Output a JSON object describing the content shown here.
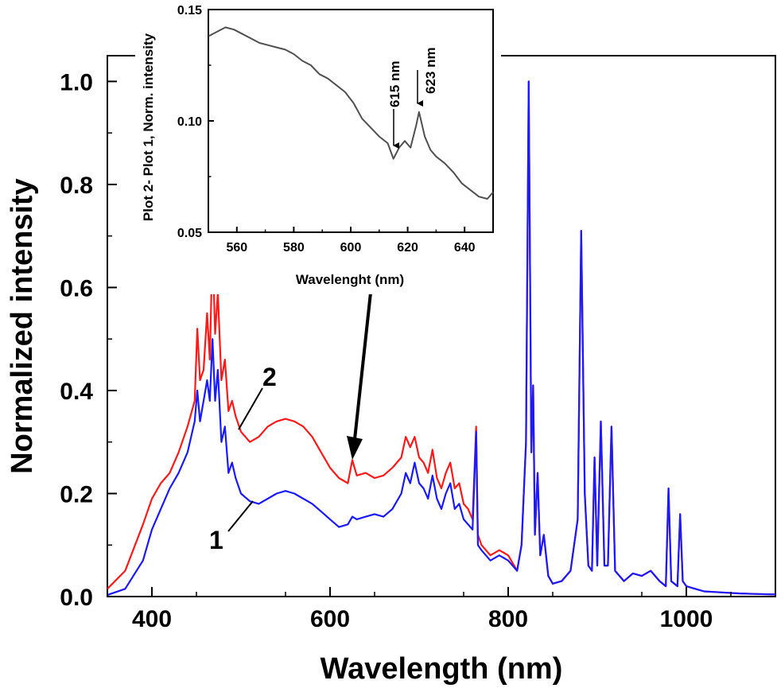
{
  "chart_data": [
    {
      "id": "main",
      "type": "line",
      "xlabel": "Wavelength (nm)",
      "ylabel": "Normalized intensity",
      "xlim": [
        350,
        1100
      ],
      "ylim": [
        0.0,
        1.05
      ],
      "xticks": [
        400,
        600,
        800,
        1000
      ],
      "xtick_labels": [
        "400",
        "600",
        "800",
        "1000"
      ],
      "yticks": [
        0.0,
        0.2,
        0.4,
        0.6,
        0.8,
        1.0
      ],
      "ytick_labels": [
        "0.0",
        "0.2",
        "0.4",
        "0.6",
        "0.8",
        "1.0"
      ],
      "series_labels": [
        "2",
        "1"
      ],
      "series": [
        {
          "name": "2",
          "color": "#ff1a1a",
          "x": [
            350,
            370,
            390,
            400,
            410,
            420,
            430,
            440,
            448,
            451,
            454,
            458,
            462,
            465,
            468,
            471,
            474,
            478,
            482,
            486,
            490,
            494,
            500,
            510,
            520,
            530,
            540,
            550,
            560,
            570,
            580,
            590,
            600,
            610,
            620,
            625,
            630,
            640,
            650,
            660,
            670,
            680,
            685,
            690,
            695,
            700,
            705,
            710,
            715,
            720,
            725,
            730,
            735,
            740,
            745,
            750,
            755,
            760,
            764,
            766,
            770,
            780,
            790,
            800,
            810,
            815,
            820,
            823,
            826,
            828,
            830,
            833,
            836,
            840,
            845,
            850,
            860,
            870,
            878,
            882,
            886,
            890,
            894,
            897,
            900,
            904,
            908,
            912,
            916,
            920,
            930,
            940,
            950,
            960,
            970,
            977,
            980,
            983,
            990,
            993,
            996,
            1000,
            1010,
            1020,
            1040,
            1060,
            1080,
            1100
          ],
          "values": [
            0.015,
            0.05,
            0.14,
            0.19,
            0.22,
            0.24,
            0.28,
            0.33,
            0.38,
            0.52,
            0.42,
            0.44,
            0.55,
            0.46,
            0.68,
            0.51,
            0.59,
            0.42,
            0.46,
            0.36,
            0.38,
            0.35,
            0.32,
            0.3,
            0.31,
            0.33,
            0.34,
            0.345,
            0.34,
            0.33,
            0.31,
            0.28,
            0.25,
            0.23,
            0.22,
            0.265,
            0.235,
            0.24,
            0.23,
            0.235,
            0.25,
            0.27,
            0.31,
            0.29,
            0.31,
            0.27,
            0.26,
            0.24,
            0.285,
            0.23,
            0.21,
            0.24,
            0.26,
            0.21,
            0.22,
            0.18,
            0.17,
            0.15,
            0.33,
            0.12,
            0.1,
            0.08,
            0.09,
            0.08,
            0.05,
            0.1,
            0.3,
            1.0,
            0.28,
            0.41,
            0.12,
            0.24,
            0.08,
            0.12,
            0.04,
            0.025,
            0.03,
            0.05,
            0.15,
            0.71,
            0.2,
            0.06,
            0.05,
            0.27,
            0.06,
            0.34,
            0.06,
            0.06,
            0.33,
            0.05,
            0.03,
            0.045,
            0.04,
            0.05,
            0.03,
            0.02,
            0.21,
            0.03,
            0.02,
            0.16,
            0.03,
            0.02,
            0.015,
            0.01,
            0.008,
            0.006,
            0.005,
            0.004
          ]
        },
        {
          "name": "1",
          "color": "#1a1aff",
          "x": [
            350,
            370,
            390,
            400,
            410,
            420,
            430,
            440,
            448,
            451,
            454,
            458,
            462,
            465,
            468,
            471,
            474,
            478,
            482,
            486,
            490,
            494,
            500,
            510,
            520,
            530,
            540,
            550,
            560,
            570,
            580,
            590,
            600,
            610,
            620,
            625,
            630,
            640,
            650,
            660,
            670,
            680,
            685,
            690,
            695,
            700,
            705,
            710,
            715,
            720,
            725,
            730,
            735,
            740,
            745,
            750,
            755,
            760,
            764,
            766,
            770,
            780,
            790,
            800,
            810,
            815,
            820,
            823,
            826,
            828,
            830,
            833,
            836,
            840,
            845,
            850,
            860,
            870,
            878,
            882,
            886,
            890,
            894,
            897,
            900,
            904,
            908,
            912,
            916,
            920,
            930,
            940,
            950,
            960,
            970,
            977,
            980,
            983,
            990,
            993,
            996,
            1000,
            1010,
            1020,
            1040,
            1060,
            1080,
            1100
          ],
          "values": [
            0.003,
            0.015,
            0.07,
            0.13,
            0.17,
            0.21,
            0.24,
            0.28,
            0.34,
            0.4,
            0.34,
            0.38,
            0.42,
            0.38,
            0.5,
            0.38,
            0.44,
            0.3,
            0.33,
            0.24,
            0.26,
            0.23,
            0.2,
            0.185,
            0.18,
            0.19,
            0.2,
            0.205,
            0.2,
            0.19,
            0.18,
            0.165,
            0.15,
            0.135,
            0.14,
            0.155,
            0.15,
            0.155,
            0.16,
            0.155,
            0.17,
            0.2,
            0.24,
            0.22,
            0.26,
            0.22,
            0.21,
            0.19,
            0.235,
            0.19,
            0.17,
            0.2,
            0.22,
            0.17,
            0.18,
            0.15,
            0.14,
            0.13,
            0.32,
            0.1,
            0.09,
            0.07,
            0.08,
            0.07,
            0.05,
            0.1,
            0.3,
            1.0,
            0.28,
            0.41,
            0.12,
            0.24,
            0.08,
            0.12,
            0.04,
            0.025,
            0.03,
            0.05,
            0.15,
            0.71,
            0.2,
            0.06,
            0.05,
            0.27,
            0.06,
            0.34,
            0.06,
            0.06,
            0.33,
            0.05,
            0.03,
            0.045,
            0.04,
            0.05,
            0.03,
            0.02,
            0.21,
            0.03,
            0.02,
            0.16,
            0.03,
            0.02,
            0.015,
            0.01,
            0.008,
            0.006,
            0.005,
            0.004
          ]
        }
      ],
      "annotations": [
        {
          "type": "arrow",
          "from_inset_point": "peak_region",
          "to": [
            625,
            0.28
          ]
        }
      ]
    },
    {
      "id": "inset",
      "type": "line",
      "xlabel": "Wavelenght (nm)",
      "ylabel": "Plot 2- Plot 1, Norm. intensity",
      "xlim": [
        550,
        650
      ],
      "ylim": [
        0.05,
        0.15
      ],
      "xticks": [
        560,
        580,
        600,
        620,
        640
      ],
      "xtick_labels": [
        "560",
        "580",
        "600",
        "620",
        "640"
      ],
      "yticks": [
        0.05,
        0.1,
        0.15
      ],
      "ytick_labels": [
        "0.05",
        "0.10",
        "0.15"
      ],
      "series": [
        {
          "name": "",
          "color": "#505050",
          "x": [
            550,
            553,
            556,
            559,
            562,
            565,
            568,
            571,
            574,
            577,
            580,
            583,
            586,
            589,
            592,
            595,
            598,
            601,
            604,
            607,
            610,
            613,
            615,
            617,
            619,
            621,
            623,
            624,
            626,
            628,
            630,
            633,
            636,
            639,
            642,
            645,
            648,
            650
          ],
          "values": [
            0.138,
            0.14,
            0.142,
            0.141,
            0.139,
            0.137,
            0.135,
            0.134,
            0.133,
            0.132,
            0.13,
            0.127,
            0.125,
            0.121,
            0.119,
            0.116,
            0.113,
            0.108,
            0.101,
            0.097,
            0.093,
            0.09,
            0.083,
            0.088,
            0.091,
            0.088,
            0.098,
            0.104,
            0.093,
            0.087,
            0.084,
            0.081,
            0.077,
            0.072,
            0.069,
            0.066,
            0.065,
            0.068
          ]
        }
      ],
      "annotations": [
        {
          "label": "615 nm",
          "x": 615,
          "y": 0.085
        },
        {
          "label": "623 nm",
          "x": 623,
          "y": 0.102
        }
      ]
    }
  ]
}
